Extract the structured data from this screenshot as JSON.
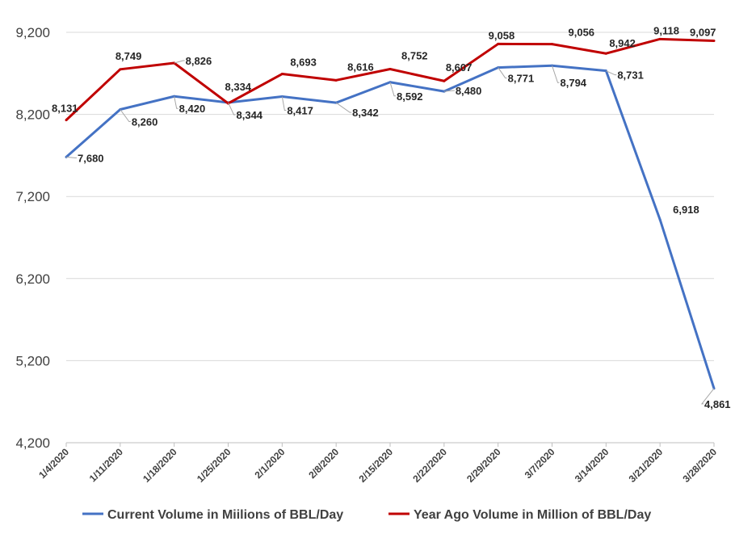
{
  "chart_data": {
    "type": "line",
    "title": "",
    "xlabel": "",
    "ylabel": "",
    "categories": [
      "1/4/2020",
      "1/11/2020",
      "1/18/2020",
      "1/25/2020",
      "2/1/2020",
      "2/8/2020",
      "2/15/2020",
      "2/22/2020",
      "2/29/2020",
      "3/7/2020",
      "3/14/2020",
      "3/21/2020",
      "3/28/2020"
    ],
    "ylim": [
      4200,
      9200
    ],
    "yticks": [
      4200,
      5200,
      6200,
      7200,
      8200,
      9200
    ],
    "ytick_labels": [
      "4,200",
      "5,200",
      "6,200",
      "7,200",
      "8,200",
      "9,200"
    ],
    "grid": true,
    "legend_position": "bottom",
    "series": [
      {
        "name": "Current Volume in Miilions of BBL/Day",
        "color": "#4472c4",
        "values": [
          7680,
          8260,
          8420,
          8344,
          8417,
          8342,
          8592,
          8480,
          8771,
          8794,
          8731,
          6918,
          4861
        ],
        "labels": [
          "7,680",
          "8,260",
          "8,420",
          "8,344",
          "8,417",
          "8,342",
          "8,592",
          "8,480",
          "8,771",
          "8,794",
          "8,731",
          "6,918",
          "4,861"
        ]
      },
      {
        "name": "Year Ago Volume in Million of BBL/Day",
        "color": "#c00000",
        "values": [
          8131,
          8749,
          8826,
          8334,
          8693,
          8616,
          8752,
          8607,
          9058,
          9056,
          8942,
          9118,
          9097
        ],
        "labels": [
          "8,131",
          "8,749",
          "8,826",
          "8,334",
          "8,693",
          "8,616",
          "8,752",
          "8,607",
          "9,058",
          "9,056",
          "8,942",
          "9,118",
          "9,097"
        ]
      }
    ]
  }
}
